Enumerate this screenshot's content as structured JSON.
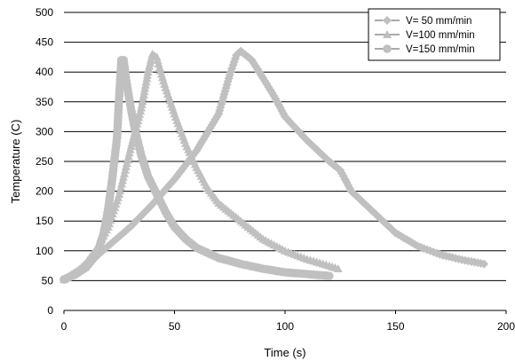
{
  "chart_data": {
    "type": "scatter",
    "xlabel": "Time (s)",
    "ylabel": "Temperature (C)",
    "xlim": [
      0,
      200
    ],
    "ylim": [
      0,
      500
    ],
    "xticks": [
      0,
      50,
      100,
      150,
      200
    ],
    "yticks": [
      0,
      50,
      100,
      150,
      200,
      250,
      300,
      350,
      400,
      450,
      500
    ],
    "grid": "horizontal",
    "legend_position": "top-right",
    "marker_color": "#c0c0c0",
    "series": [
      {
        "name": "V= 50 mm/min",
        "marker": "diamond",
        "points": [
          [
            0,
            52
          ],
          [
            10,
            75
          ],
          [
            20,
            108
          ],
          [
            30,
            140
          ],
          [
            40,
            178
          ],
          [
            50,
            220
          ],
          [
            60,
            268
          ],
          [
            70,
            330
          ],
          [
            75,
            395
          ],
          [
            78,
            428
          ],
          [
            80,
            435
          ],
          [
            85,
            420
          ],
          [
            90,
            390
          ],
          [
            95,
            360
          ],
          [
            100,
            325
          ],
          [
            110,
            285
          ],
          [
            120,
            250
          ],
          [
            125,
            235
          ],
          [
            130,
            200
          ],
          [
            140,
            165
          ],
          [
            150,
            130
          ],
          [
            160,
            108
          ],
          [
            170,
            94
          ],
          [
            180,
            85
          ],
          [
            190,
            78
          ]
        ]
      },
      {
        "name": "V=100 mm/min",
        "marker": "triangle",
        "points": [
          [
            0,
            52
          ],
          [
            5,
            62
          ],
          [
            10,
            80
          ],
          [
            15,
            105
          ],
          [
            20,
            140
          ],
          [
            25,
            195
          ],
          [
            30,
            270
          ],
          [
            35,
            340
          ],
          [
            38,
            400
          ],
          [
            40,
            430
          ],
          [
            42,
            425
          ],
          [
            45,
            385
          ],
          [
            50,
            330
          ],
          [
            55,
            280
          ],
          [
            60,
            240
          ],
          [
            65,
            205
          ],
          [
            70,
            180
          ],
          [
            80,
            150
          ],
          [
            90,
            120
          ],
          [
            100,
            100
          ],
          [
            110,
            86
          ],
          [
            120,
            75
          ],
          [
            124,
            70
          ]
        ]
      },
      {
        "name": "V=150 mm/min",
        "marker": "circle",
        "points": [
          [
            0,
            52
          ],
          [
            5,
            60
          ],
          [
            10,
            72
          ],
          [
            15,
            95
          ],
          [
            18,
            130
          ],
          [
            20,
            170
          ],
          [
            22,
            225
          ],
          [
            24,
            290
          ],
          [
            25,
            360
          ],
          [
            26,
            420
          ],
          [
            27,
            420
          ],
          [
            28,
            390
          ],
          [
            30,
            345
          ],
          [
            32,
            305
          ],
          [
            35,
            260
          ],
          [
            38,
            225
          ],
          [
            42,
            195
          ],
          [
            46,
            165
          ],
          [
            50,
            140
          ],
          [
            55,
            120
          ],
          [
            60,
            105
          ],
          [
            70,
            88
          ],
          [
            80,
            78
          ],
          [
            90,
            70
          ],
          [
            100,
            64
          ],
          [
            110,
            61
          ],
          [
            120,
            58
          ]
        ]
      }
    ]
  }
}
